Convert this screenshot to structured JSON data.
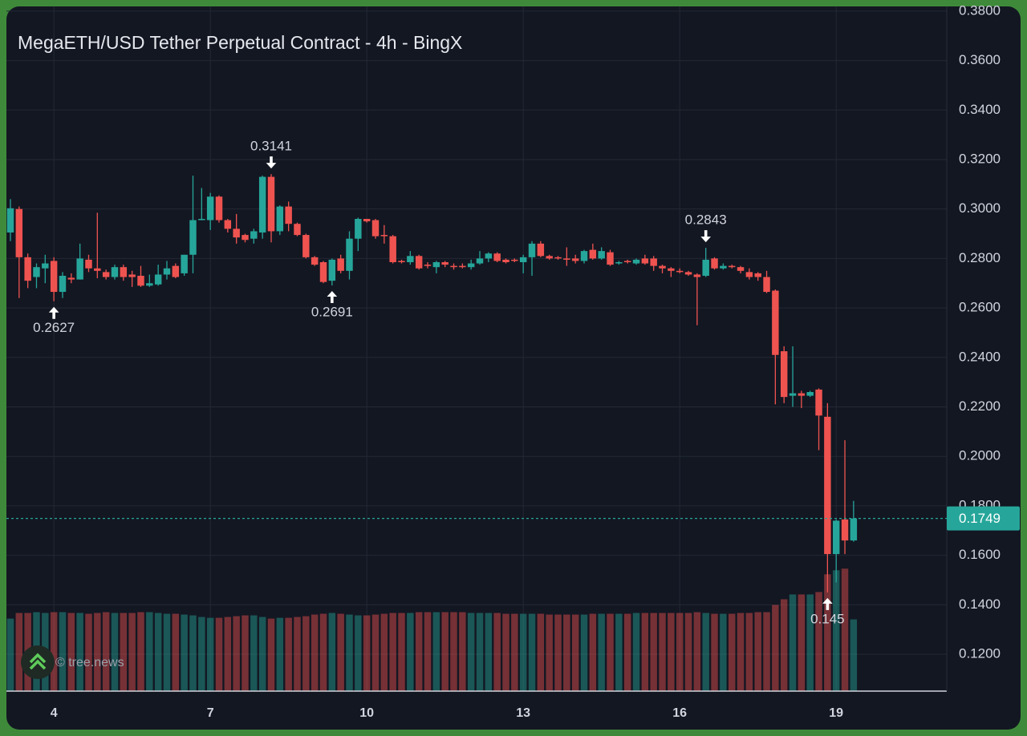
{
  "chart_data": {
    "type": "candlestick",
    "title": "MegaETH/USD Tether Perpetual Contract - 4h - BingX",
    "watermark": "© tree.news",
    "up_color": "#26a69a",
    "down_color": "#ef5350",
    "grid": true,
    "xlim": [
      3.09,
      21.12
    ],
    "xticks": [
      4,
      7,
      10,
      13,
      16,
      19
    ],
    "ylim": [
      0.1051,
      0.3819
    ],
    "yticks": [
      {
        "value": 0.12,
        "label": "0.1200"
      },
      {
        "value": 0.14,
        "label": "0.1400"
      },
      {
        "value": 0.16,
        "label": "0.1600"
      },
      {
        "value": 0.18,
        "label": "0.1800"
      },
      {
        "value": 0.2,
        "label": "0.2000"
      },
      {
        "value": 0.22,
        "label": "0.2200"
      },
      {
        "value": 0.24,
        "label": "0.2400"
      },
      {
        "value": 0.26,
        "label": "0.2600"
      },
      {
        "value": 0.28,
        "label": "0.2800"
      },
      {
        "value": 0.3,
        "label": "0.3000"
      },
      {
        "value": 0.32,
        "label": "0.3200"
      },
      {
        "value": 0.34,
        "label": "0.3400"
      },
      {
        "value": 0.36,
        "label": "0.3600"
      },
      {
        "value": 0.38,
        "label": "0.3800"
      }
    ],
    "volume_lim": [
      0,
      850
    ],
    "last_price": 0.1749,
    "annotations": [
      {
        "value": 0.2627,
        "x": 4,
        "side": "below"
      },
      {
        "value": 0.3141,
        "x": 8.1667,
        "side": "above"
      },
      {
        "value": 0.2691,
        "x": 9.3333,
        "side": "below"
      },
      {
        "value": 0.2843,
        "x": 16.5,
        "side": "above"
      },
      {
        "value": 0.145,
        "x": 18.8333,
        "side": "below"
      }
    ],
    "x": [
      3.1667,
      3.3333,
      3.5,
      3.6667,
      3.8333,
      4,
      4.1667,
      4.3333,
      4.5,
      4.6667,
      4.8333,
      5,
      5.1667,
      5.3333,
      5.5,
      5.6667,
      5.8333,
      6,
      6.1667,
      6.3333,
      6.5,
      6.6667,
      6.8333,
      7,
      7.1667,
      7.3333,
      7.5,
      7.6667,
      7.8333,
      8,
      8.1667,
      8.3333,
      8.5,
      8.6667,
      8.8333,
      9,
      9.1667,
      9.3333,
      9.5,
      9.6667,
      9.8333,
      10,
      10.1667,
      10.3333,
      10.5,
      10.6667,
      10.8333,
      11,
      11.1667,
      11.3333,
      11.5,
      11.6667,
      11.8333,
      12,
      12.1667,
      12.3333,
      12.5,
      12.6667,
      12.8333,
      13,
      13.1667,
      13.3333,
      13.5,
      13.6667,
      13.8333,
      14,
      14.1667,
      14.3333,
      14.5,
      14.6667,
      14.8333,
      15,
      15.1667,
      15.3333,
      15.5,
      15.6667,
      15.8333,
      16,
      16.1667,
      16.3333,
      16.5,
      16.6667,
      16.8333,
      17,
      17.1667,
      17.3333,
      17.5,
      17.6667,
      17.8333,
      18,
      18.1667,
      18.3333,
      18.5,
      18.6667,
      18.8333,
      19,
      19.1667,
      19.3333
    ],
    "open": [
      0.2905,
      0.3,
      0.2805,
      0.2725,
      0.276,
      0.279,
      0.2665,
      0.2722,
      0.2715,
      0.2795,
      0.276,
      0.2745,
      0.2725,
      0.2765,
      0.2735,
      0.273,
      0.269,
      0.2695,
      0.2735,
      0.277,
      0.274,
      0.2815,
      0.2955,
      0.2955,
      0.305,
      0.2955,
      0.292,
      0.2895,
      0.288,
      0.2905,
      0.313,
      0.291,
      0.301,
      0.294,
      0.2895,
      0.2805,
      0.2785,
      0.271,
      0.28,
      0.275,
      0.288,
      0.296,
      0.2955,
      0.2895,
      0.289,
      0.279,
      0.2785,
      0.281,
      0.2775,
      0.2765,
      0.2785,
      0.277,
      0.277,
      0.2765,
      0.278,
      0.28,
      0.282,
      0.2795,
      0.2795,
      0.2785,
      0.2805,
      0.286,
      0.281,
      0.2805,
      0.28,
      0.28,
      0.279,
      0.2835,
      0.28,
      0.2825,
      0.278,
      0.279,
      0.278,
      0.28,
      0.28,
      0.277,
      0.276,
      0.275,
      0.2745,
      0.2735,
      0.273,
      0.28,
      0.276,
      0.277,
      0.2765,
      0.2745,
      0.274,
      0.2725,
      0.267,
      0.2425,
      0.2245,
      0.2255,
      0.2245,
      0.227,
      0.216,
      0.1605,
      0.1745,
      0.166
    ],
    "high": [
      0.304,
      0.301,
      0.282,
      0.278,
      0.2815,
      0.2805,
      0.2745,
      0.274,
      0.286,
      0.2815,
      0.2985,
      0.2755,
      0.2775,
      0.2775,
      0.275,
      0.277,
      0.2735,
      0.2775,
      0.279,
      0.278,
      0.2815,
      0.3135,
      0.3085,
      0.3065,
      0.3055,
      0.296,
      0.298,
      0.29,
      0.292,
      0.3135,
      0.3141,
      0.3015,
      0.303,
      0.2945,
      0.29,
      0.281,
      0.279,
      0.28,
      0.2815,
      0.291,
      0.2965,
      0.296,
      0.296,
      0.2935,
      0.2895,
      0.2795,
      0.283,
      0.2815,
      0.2785,
      0.279,
      0.279,
      0.278,
      0.278,
      0.2795,
      0.283,
      0.2825,
      0.2825,
      0.28,
      0.28,
      0.2815,
      0.287,
      0.287,
      0.2815,
      0.281,
      0.2845,
      0.2815,
      0.2835,
      0.286,
      0.2845,
      0.2835,
      0.279,
      0.2795,
      0.28,
      0.2815,
      0.281,
      0.2775,
      0.2765,
      0.276,
      0.275,
      0.274,
      0.2843,
      0.2805,
      0.278,
      0.2775,
      0.277,
      0.276,
      0.2745,
      0.275,
      0.2675,
      0.2445,
      0.2445,
      0.2265,
      0.2265,
      0.2275,
      0.2215,
      0.1745,
      0.2065,
      0.182
    ],
    "low": [
      0.287,
      0.264,
      0.268,
      0.268,
      0.27,
      0.2627,
      0.264,
      0.27,
      0.2715,
      0.2745,
      0.272,
      0.2715,
      0.2715,
      0.271,
      0.2685,
      0.2685,
      0.2685,
      0.269,
      0.2715,
      0.272,
      0.273,
      0.274,
      0.2955,
      0.2915,
      0.2945,
      0.2905,
      0.286,
      0.2865,
      0.286,
      0.288,
      0.2865,
      0.2895,
      0.291,
      0.289,
      0.28,
      0.277,
      0.27,
      0.2691,
      0.274,
      0.2715,
      0.283,
      0.2945,
      0.288,
      0.286,
      0.278,
      0.278,
      0.2775,
      0.2755,
      0.276,
      0.274,
      0.2765,
      0.2755,
      0.276,
      0.2755,
      0.2775,
      0.2785,
      0.2785,
      0.278,
      0.2785,
      0.274,
      0.273,
      0.2805,
      0.2795,
      0.2795,
      0.277,
      0.278,
      0.278,
      0.2795,
      0.2795,
      0.277,
      0.2775,
      0.278,
      0.2775,
      0.2775,
      0.275,
      0.274,
      0.2725,
      0.274,
      0.273,
      0.253,
      0.2725,
      0.2755,
      0.2755,
      0.276,
      0.274,
      0.2715,
      0.271,
      0.266,
      0.221,
      0.2215,
      0.22,
      0.2195,
      0.224,
      0.2025,
      0.145,
      0.149,
      0.1605,
      0.1655
    ],
    "close": [
      0.3003,
      0.2805,
      0.271,
      0.2765,
      0.278,
      0.2665,
      0.273,
      0.2715,
      0.28,
      0.276,
      0.275,
      0.2725,
      0.2765,
      0.2725,
      0.2725,
      0.269,
      0.27,
      0.2735,
      0.276,
      0.2725,
      0.2815,
      0.2955,
      0.296,
      0.305,
      0.2955,
      0.292,
      0.2885,
      0.2875,
      0.291,
      0.313,
      0.291,
      0.301,
      0.294,
      0.2895,
      0.2805,
      0.2775,
      0.2705,
      0.2795,
      0.275,
      0.288,
      0.296,
      0.295,
      0.289,
      0.289,
      0.2785,
      0.2785,
      0.281,
      0.276,
      0.277,
      0.2785,
      0.2775,
      0.2765,
      0.2765,
      0.278,
      0.28,
      0.282,
      0.279,
      0.2785,
      0.279,
      0.2805,
      0.286,
      0.281,
      0.28,
      0.28,
      0.2795,
      0.279,
      0.283,
      0.28,
      0.283,
      0.2775,
      0.2785,
      0.2785,
      0.2795,
      0.278,
      0.277,
      0.276,
      0.275,
      0.2745,
      0.2735,
      0.2725,
      0.2795,
      0.276,
      0.277,
      0.2765,
      0.275,
      0.2725,
      0.2725,
      0.2665,
      0.241,
      0.224,
      0.2255,
      0.2245,
      0.226,
      0.2165,
      0.1605,
      0.174,
      0.166,
      0.1749
    ],
    "volume": [
      90,
      97,
      97,
      98,
      97,
      98,
      98,
      97,
      97,
      96,
      97,
      98,
      97,
      97,
      97,
      98,
      98,
      97,
      96,
      96,
      95,
      94,
      92,
      91,
      91,
      92,
      93,
      94,
      94,
      92,
      90,
      91,
      91,
      92,
      93,
      95,
      96,
      97,
      96,
      95,
      94,
      94,
      95,
      96,
      97,
      97,
      97,
      98,
      98,
      98,
      98,
      98,
      98,
      97,
      97,
      97,
      97,
      96,
      96,
      96,
      96,
      96,
      95,
      95,
      95,
      95,
      95,
      96,
      96,
      96,
      96,
      96,
      97,
      97,
      97,
      97,
      97,
      97,
      97,
      98,
      97,
      96,
      96,
      96,
      97,
      97,
      98,
      98,
      107,
      114,
      120,
      120,
      120,
      123,
      145,
      150,
      152,
      89
    ]
  }
}
